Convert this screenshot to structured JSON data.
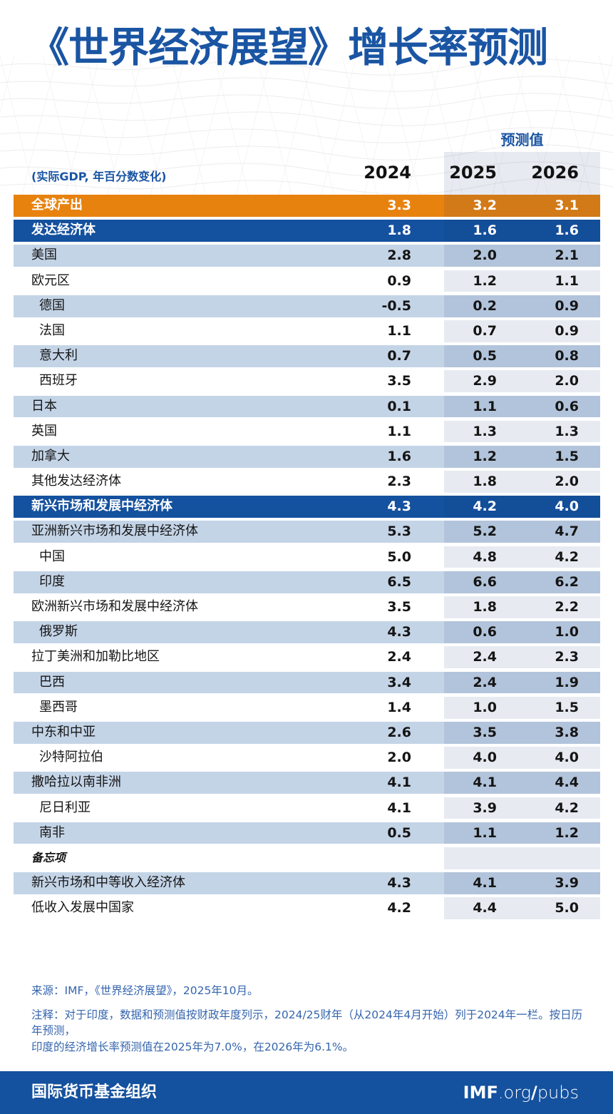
{
  "header": {
    "forecast_label": "预测值",
    "unit_label": "(实际GDP, 年百分数变化)"
  },
  "chart_data": {
    "type": "table",
    "title": "《世界经济展望》增长率预测",
    "columns": [
      "2024",
      "2025",
      "2026"
    ],
    "forecast_columns": [
      "2025",
      "2026"
    ],
    "rows": [
      {
        "label": "全球产出",
        "indent": false,
        "style": "orange",
        "values": [
          "3.3",
          "3.2",
          "3.1"
        ]
      },
      {
        "label": "发达经济体",
        "indent": false,
        "style": "blue",
        "values": [
          "1.8",
          "1.6",
          "1.6"
        ]
      },
      {
        "label": "美国",
        "indent": false,
        "style": "light",
        "values": [
          "2.8",
          "2.0",
          "2.1"
        ]
      },
      {
        "label": "欧元区",
        "indent": false,
        "style": "white",
        "values": [
          "0.9",
          "1.2",
          "1.1"
        ]
      },
      {
        "label": "德国",
        "indent": true,
        "style": "light",
        "values": [
          "-0.5",
          "0.2",
          "0.9"
        ]
      },
      {
        "label": "法国",
        "indent": true,
        "style": "white",
        "values": [
          "1.1",
          "0.7",
          "0.9"
        ]
      },
      {
        "label": "意大利",
        "indent": true,
        "style": "light",
        "values": [
          "0.7",
          "0.5",
          "0.8"
        ]
      },
      {
        "label": "西班牙",
        "indent": true,
        "style": "white",
        "values": [
          "3.5",
          "2.9",
          "2.0"
        ]
      },
      {
        "label": "日本",
        "indent": false,
        "style": "light",
        "values": [
          "0.1",
          "1.1",
          "0.6"
        ]
      },
      {
        "label": "英国",
        "indent": false,
        "style": "white",
        "values": [
          "1.1",
          "1.3",
          "1.3"
        ]
      },
      {
        "label": "加拿大",
        "indent": false,
        "style": "light",
        "values": [
          "1.6",
          "1.2",
          "1.5"
        ]
      },
      {
        "label": "其他发达经济体",
        "indent": false,
        "style": "white",
        "values": [
          "2.3",
          "1.8",
          "2.0"
        ]
      },
      {
        "label": "新兴市场和发展中经济体",
        "indent": false,
        "style": "blue",
        "values": [
          "4.3",
          "4.2",
          "4.0"
        ]
      },
      {
        "label": "亚洲新兴市场和发展中经济体",
        "indent": false,
        "style": "light",
        "values": [
          "5.3",
          "5.2",
          "4.7"
        ]
      },
      {
        "label": "中国",
        "indent": true,
        "style": "white",
        "values": [
          "5.0",
          "4.8",
          "4.2"
        ]
      },
      {
        "label": "印度",
        "indent": true,
        "style": "light",
        "values": [
          "6.5",
          "6.6",
          "6.2"
        ]
      },
      {
        "label": "欧洲新兴市场和发展中经济体",
        "indent": false,
        "style": "white",
        "values": [
          "3.5",
          "1.8",
          "2.2"
        ]
      },
      {
        "label": "俄罗斯",
        "indent": true,
        "style": "light",
        "values": [
          "4.3",
          "0.6",
          "1.0"
        ]
      },
      {
        "label": "拉丁美洲和加勒比地区",
        "indent": false,
        "style": "white",
        "values": [
          "2.4",
          "2.4",
          "2.3"
        ]
      },
      {
        "label": "巴西",
        "indent": true,
        "style": "light",
        "values": [
          "3.4",
          "2.4",
          "1.9"
        ]
      },
      {
        "label": "墨西哥",
        "indent": true,
        "style": "white",
        "values": [
          "1.4",
          "1.0",
          "1.5"
        ]
      },
      {
        "label": "中东和中亚",
        "indent": false,
        "style": "light",
        "values": [
          "2.6",
          "3.5",
          "3.8"
        ]
      },
      {
        "label": "沙特阿拉伯",
        "indent": true,
        "style": "white",
        "values": [
          "2.0",
          "4.0",
          "4.0"
        ]
      },
      {
        "label": "撒哈拉以南非洲",
        "indent": false,
        "style": "light",
        "values": [
          "4.1",
          "4.1",
          "4.4"
        ]
      },
      {
        "label": "尼日利亚",
        "indent": true,
        "style": "white",
        "values": [
          "4.1",
          "3.9",
          "4.2"
        ]
      },
      {
        "label": "南非",
        "indent": true,
        "style": "light",
        "values": [
          "0.5",
          "1.1",
          "1.2"
        ]
      },
      {
        "label": "备忘项",
        "indent": false,
        "style": "white",
        "memo": true,
        "values": [
          "",
          "",
          ""
        ]
      },
      {
        "label": "新兴市场和中等收入经济体",
        "indent": false,
        "style": "light",
        "values": [
          "4.3",
          "4.1",
          "3.9"
        ]
      },
      {
        "label": "低收入发展中国家",
        "indent": false,
        "style": "white",
        "values": [
          "4.2",
          "4.4",
          "5.0"
        ]
      }
    ]
  },
  "footnotes": {
    "source": "来源：IMF，《世界经济展望》，2025年10月。",
    "note": "注释：对于印度，数据和预测值按财政年度列示，2024/25财年（从2024年4月开始）列于2024年一栏。按日历年预测，\n印度的经济增长率预测值在2025年为7.0%，在2026年为6.1%。"
  },
  "footer_bar": {
    "org": "国际货币基金组织",
    "site_bold": "IMF",
    "site_dot_org": ".org",
    "site_slash": "/",
    "site_pubs": "pubs"
  },
  "colors": {
    "title_blue": "#1A55A3",
    "bar_blue": "#14519E",
    "orange": "#E8820E",
    "light_row": "#C4D4E7",
    "note_blue": "#3565AE",
    "value_black": "#151515"
  }
}
